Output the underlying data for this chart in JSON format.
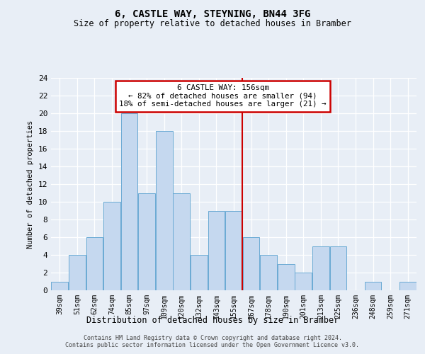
{
  "title1": "6, CASTLE WAY, STEYNING, BN44 3FG",
  "title2": "Size of property relative to detached houses in Bramber",
  "xlabel": "Distribution of detached houses by size in Bramber",
  "ylabel": "Number of detached properties",
  "categories": [
    "39sqm",
    "51sqm",
    "62sqm",
    "74sqm",
    "85sqm",
    "97sqm",
    "109sqm",
    "120sqm",
    "132sqm",
    "143sqm",
    "155sqm",
    "167sqm",
    "178sqm",
    "190sqm",
    "201sqm",
    "213sqm",
    "225sqm",
    "236sqm",
    "248sqm",
    "259sqm",
    "271sqm"
  ],
  "values": [
    1,
    4,
    6,
    10,
    20,
    11,
    18,
    11,
    4,
    9,
    9,
    6,
    4,
    3,
    2,
    5,
    5,
    0,
    1,
    0,
    1
  ],
  "bar_color": "#c5d8ef",
  "bar_edgecolor": "#6aaad4",
  "highlight_line_index": 10,
  "highlight_color": "#cc0000",
  "ylim": [
    0,
    24
  ],
  "yticks": [
    0,
    2,
    4,
    6,
    8,
    10,
    12,
    14,
    16,
    18,
    20,
    22,
    24
  ],
  "annotation_title": "6 CASTLE WAY: 156sqm",
  "annotation_line1": "← 82% of detached houses are smaller (94)",
  "annotation_line2": "18% of semi-detached houses are larger (21) →",
  "annotation_box_color": "#cc0000",
  "footer1": "Contains HM Land Registry data © Crown copyright and database right 2024.",
  "footer2": "Contains public sector information licensed under the Open Government Licence v3.0.",
  "background_color": "#e8eef6",
  "grid_color": "#ffffff"
}
